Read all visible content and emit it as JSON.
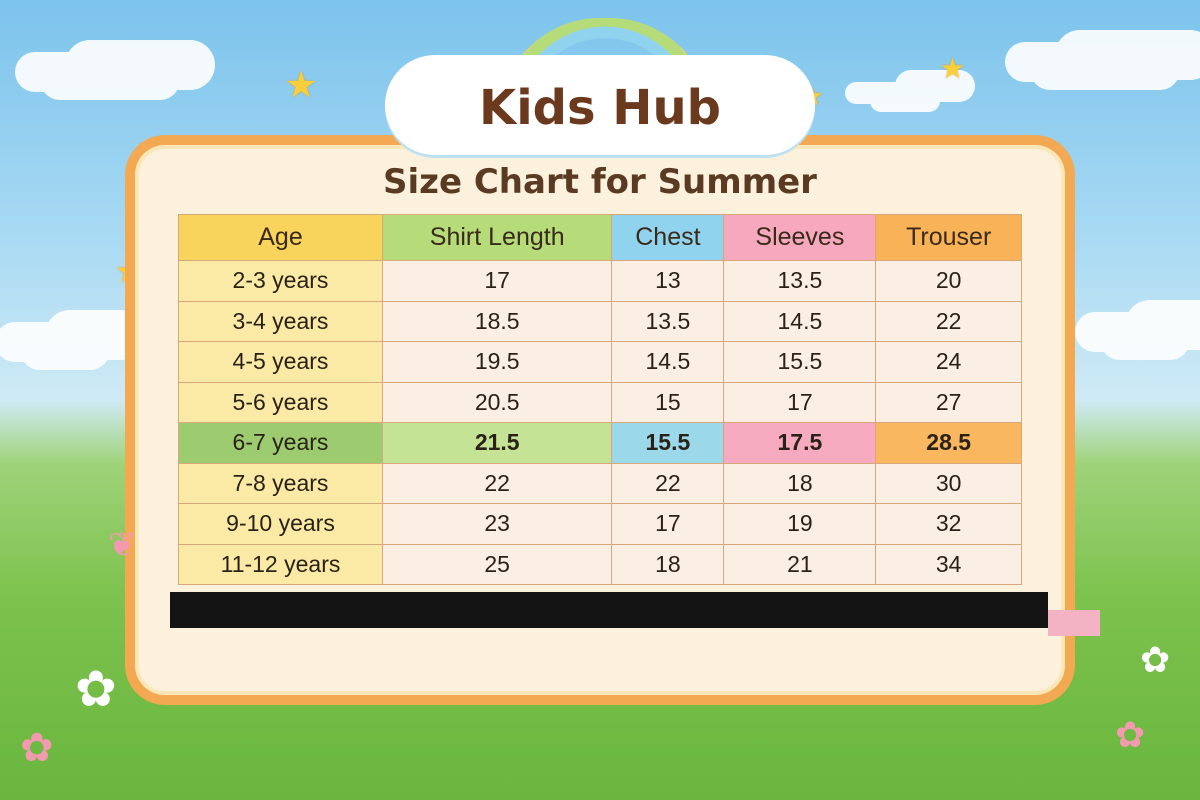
{
  "brand": {
    "name": "Kids Hub"
  },
  "title": "Size Chart for Summer",
  "colors": {
    "age": "#f9d45c",
    "shirt_length": "#b6dc7a",
    "chest": "#8fd3ee",
    "sleeves": "#f6a9bd",
    "trouser": "#f8b257",
    "border": "#f2a951"
  },
  "table": {
    "headers": [
      "Age",
      "Shirt Length",
      "Chest",
      "Sleeves",
      "Trouser"
    ],
    "rows": [
      [
        "2-3 years",
        "17",
        "13",
        "13.5",
        "20"
      ],
      [
        "3-4 years",
        "18.5",
        "13.5",
        "14.5",
        "22"
      ],
      [
        "4-5 years",
        "19.5",
        "14.5",
        "15.5",
        "24"
      ],
      [
        "5-6 years",
        "20.5",
        "15",
        "17",
        "27"
      ],
      [
        "6-7 years",
        "21.5",
        "15.5",
        "17.5",
        "28.5"
      ],
      [
        "7-8 years",
        "22",
        "22",
        "18",
        "30"
      ],
      [
        "9-10 years",
        "23",
        "17",
        "19",
        "32"
      ],
      [
        "11-12 years",
        "25",
        "18",
        "21",
        "34"
      ]
    ],
    "highlighted_row": "6-7 years"
  }
}
